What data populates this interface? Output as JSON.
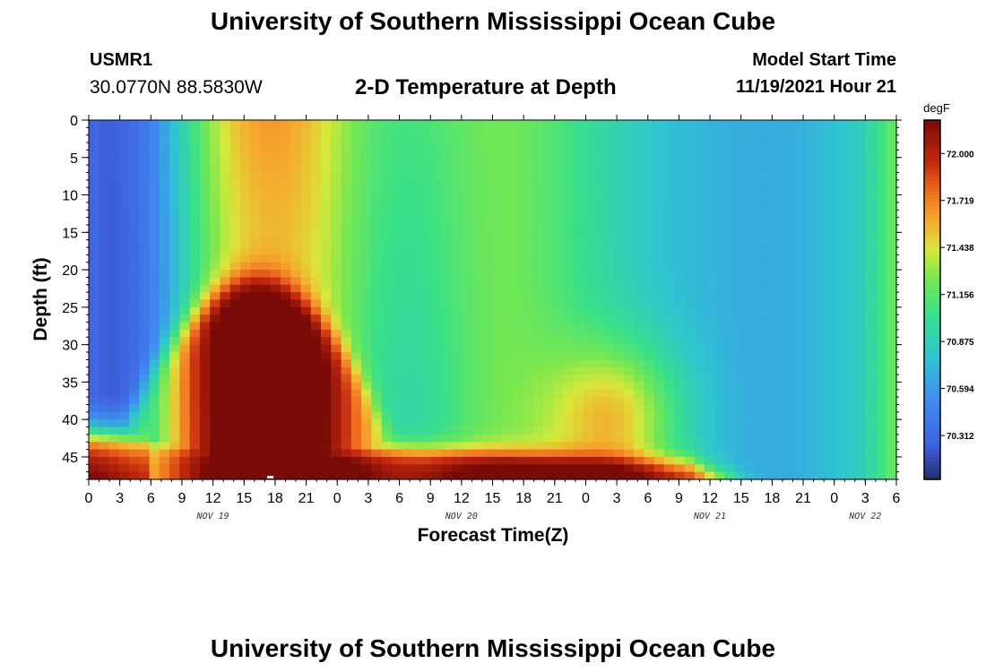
{
  "header": {
    "title": "University of Southern Mississippi Ocean Cube",
    "station_id": "USMR1",
    "coordinates": "30.0770N  88.5830W",
    "subtitle": "2-D Temperature at Depth",
    "model_start_label": "Model Start Time",
    "model_start_value": "11/19/2021 Hour 21"
  },
  "footer": {
    "title": "University of Southern Mississippi Ocean Cube"
  },
  "colors": {
    "cold": "#2a2a6e",
    "blue": "#3f7bf0",
    "cyan": "#2fc5d0",
    "green": "#38e08a",
    "yellow": "#d8e83a",
    "orange": "#f5962e",
    "red": "#c42a0e",
    "dark_red": "#7a0a06"
  },
  "chart_data": {
    "type": "heatmap",
    "title": "2-D Temperature at Depth",
    "xlabel": "Forecast Time(Z)",
    "ylabel": "Depth (ft)",
    "x_hours_from_nov19_00z": [
      0,
      81
    ],
    "xlim": [
      0,
      78
    ],
    "x_tick_labels": [
      "0",
      "3",
      "6",
      "9",
      "12",
      "15",
      "18",
      "21",
      "0",
      "3",
      "6",
      "9",
      "12",
      "15",
      "18",
      "21",
      "0",
      "3",
      "6",
      "9",
      "12",
      "15",
      "18",
      "21",
      "0",
      "3",
      "6"
    ],
    "date_labels": [
      {
        "label": "NOV 19",
        "hour": 12
      },
      {
        "label": "NOV 20",
        "hour": 36
      },
      {
        "label": "NOV 21",
        "hour": 60
      },
      {
        "label": "NOV 22",
        "hour": 75
      }
    ],
    "ylim": [
      0,
      48
    ],
    "y_tick_labels": [
      "0",
      "5",
      "10",
      "15",
      "20",
      "25",
      "30",
      "35",
      "40",
      "45"
    ],
    "y_ticks": [
      0,
      5,
      10,
      15,
      20,
      25,
      30,
      35,
      40,
      45
    ],
    "colorbar": {
      "unit": "degF",
      "range": [
        70.05,
        72.2
      ],
      "tick_values": [
        72.0,
        71.719,
        71.438,
        71.156,
        70.875,
        70.594,
        70.312
      ],
      "tick_labels": [
        "72.000",
        "71.719",
        "71.438",
        "71.156",
        "70.875",
        "70.594",
        "70.312"
      ]
    },
    "field_description_fahrenheit": {
      "surface_cold_min": 70.0,
      "bottom_warm_max": 72.2,
      "warm_plume_peak_hour": 16,
      "warm_plume_top_depth_ft": 22,
      "bottom_warm_layer_depth_ft": 44
    }
  }
}
